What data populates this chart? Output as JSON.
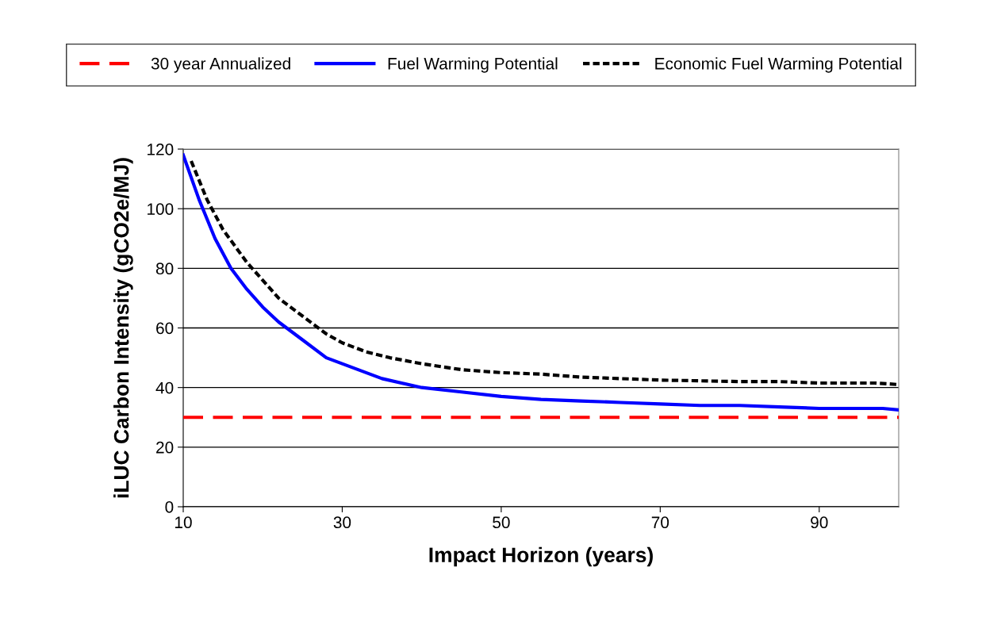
{
  "chart_data": {
    "type": "line",
    "xlabel": "Impact Horizon (years)",
    "ylabel": "iLUC Carbon Intensity (gCO2e/MJ)",
    "xlim": [
      10,
      100
    ],
    "xticks": [
      10,
      30,
      50,
      70,
      90
    ],
    "ylim": [
      0,
      120
    ],
    "yticks": [
      0,
      20,
      40,
      60,
      80,
      100,
      120
    ],
    "grid": "y",
    "legend": "top",
    "marker": "none",
    "series": [
      {
        "name": "30 year Annualized",
        "color": "#ff0000",
        "line_style": "dashed",
        "x": [
          10,
          100
        ],
        "values": [
          30,
          30
        ]
      },
      {
        "name": "Fuel Warming Potential",
        "color": "#0000ff",
        "line_style": "solid",
        "x": [
          10,
          12,
          14,
          16,
          18,
          20,
          22,
          25,
          28,
          30,
          32,
          35,
          40,
          45,
          50,
          55,
          60,
          65,
          70,
          75,
          80,
          85,
          90,
          95,
          98,
          100
        ],
        "values": [
          118,
          103,
          90,
          80,
          73,
          67,
          62,
          56,
          50,
          48,
          46,
          43,
          40,
          38.5,
          37,
          36,
          35.5,
          35,
          34.5,
          34,
          34,
          33.5,
          33,
          33,
          33,
          32.5
        ]
      },
      {
        "name": "Economic Fuel Warming Potential",
        "color": "#000000",
        "line_style": "dotted",
        "x": [
          11,
          13,
          15,
          18,
          20,
          22,
          25,
          28,
          30,
          33,
          36,
          40,
          45,
          50,
          55,
          60,
          65,
          70,
          80,
          85,
          90,
          97,
          100
        ],
        "values": [
          116,
          103,
          93,
          82,
          76,
          70,
          64,
          58,
          55,
          52,
          50,
          48,
          46,
          45,
          44.5,
          43.5,
          43,
          42.5,
          42,
          42,
          41.5,
          41.5,
          41
        ]
      }
    ]
  }
}
